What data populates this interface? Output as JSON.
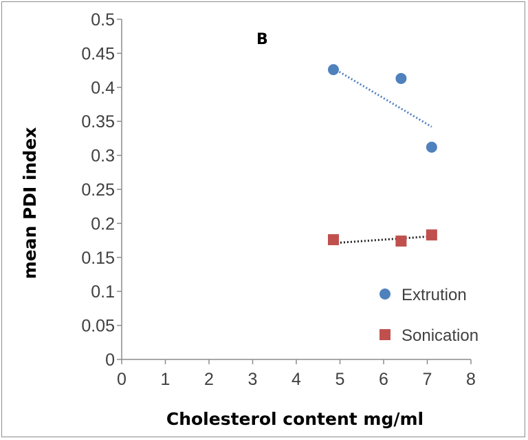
{
  "chart_data": {
    "type": "scatter",
    "panel_label": "B",
    "xlabel": "Cholesterol content mg/ml",
    "ylabel": "mean PDI index",
    "xlim": [
      0,
      8
    ],
    "ylim": [
      0,
      0.5
    ],
    "x_ticks": [
      "0",
      "1",
      "2",
      "3",
      "4",
      "5",
      "6",
      "7",
      "8"
    ],
    "y_ticks": [
      "0",
      "0.05",
      "0.1",
      "0.15",
      "0.2",
      "0.25",
      "0.3",
      "0.35",
      "0.4",
      "0.45",
      "0.5"
    ],
    "grid": false,
    "legend_position": "bottom-right",
    "series": [
      {
        "name": "Extrution",
        "marker": "circle",
        "color": "#4f81bd",
        "trendline_color": "#4f81bd",
        "x": [
          4.85,
          6.4,
          7.1
        ],
        "y": [
          0.426,
          0.413,
          0.312
        ],
        "trendline": {
          "x": [
            4.85,
            7.1
          ],
          "y": [
            0.428,
            0.342
          ]
        }
      },
      {
        "name": "Sonication",
        "marker": "square",
        "color": "#c0504d",
        "trendline_color": "#1f1f1f",
        "x": [
          4.85,
          6.4,
          7.1
        ],
        "y": [
          0.176,
          0.174,
          0.183
        ],
        "trendline": {
          "x": [
            4.85,
            7.1
          ],
          "y": [
            0.171,
            0.181
          ]
        }
      }
    ]
  }
}
